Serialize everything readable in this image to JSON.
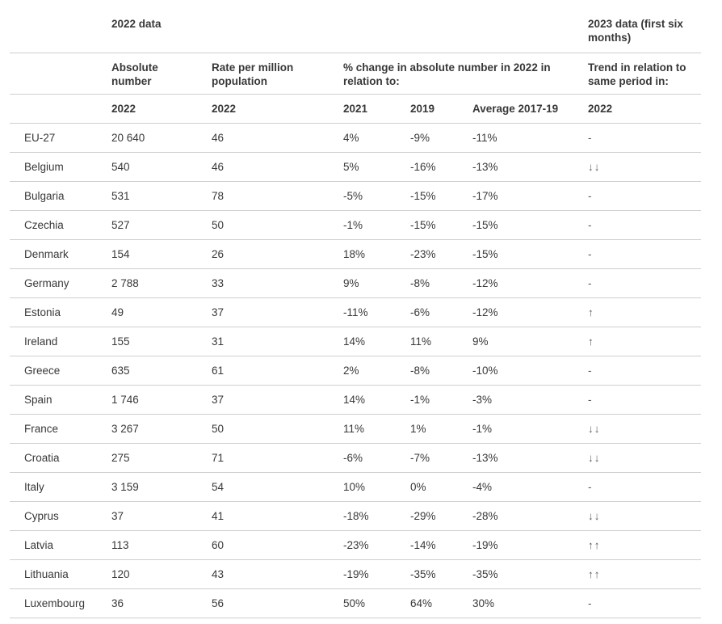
{
  "chart_data": {
    "type": "table",
    "header_groups": {
      "g2022": "2022 data",
      "g2023": "2023 data (first six months)"
    },
    "column_headers": {
      "absolute_number": "Absolute number",
      "rate_per_million": "Rate per million population",
      "pct_change_label": "% change in absolute number in 2022 in relation to:",
      "trend_label": "Trend in relation to same period in:"
    },
    "subheaders": {
      "absolute_year": "2022",
      "rate_year": "2022",
      "vs_2021": "2021",
      "vs_2019": "2019",
      "vs_avg": "Average 2017-19",
      "trend_year": "2022"
    },
    "rows": [
      {
        "country": "EU-27",
        "absolute_number": "20 640",
        "rate_per_million": "46",
        "vs_2021": "4%",
        "vs_2019": "-9%",
        "vs_avg_2017_19": "-11%",
        "trend_2023": "-"
      },
      {
        "country": "Belgium",
        "absolute_number": "540",
        "rate_per_million": "46",
        "vs_2021": "5%",
        "vs_2019": "-16%",
        "vs_avg_2017_19": "-13%",
        "trend_2023": "↓↓"
      },
      {
        "country": "Bulgaria",
        "absolute_number": "531",
        "rate_per_million": "78",
        "vs_2021": "-5%",
        "vs_2019": "-15%",
        "vs_avg_2017_19": "-17%",
        "trend_2023": "-"
      },
      {
        "country": "Czechia",
        "absolute_number": "527",
        "rate_per_million": "50",
        "vs_2021": "-1%",
        "vs_2019": "-15%",
        "vs_avg_2017_19": "-15%",
        "trend_2023": "-"
      },
      {
        "country": "Denmark",
        "absolute_number": "154",
        "rate_per_million": "26",
        "vs_2021": "18%",
        "vs_2019": "-23%",
        "vs_avg_2017_19": "-15%",
        "trend_2023": "-"
      },
      {
        "country": "Germany",
        "absolute_number": "2 788",
        "rate_per_million": "33",
        "vs_2021": "9%",
        "vs_2019": "-8%",
        "vs_avg_2017_19": "-12%",
        "trend_2023": "-"
      },
      {
        "country": "Estonia",
        "absolute_number": "49",
        "rate_per_million": "37",
        "vs_2021": "-11%",
        "vs_2019": "-6%",
        "vs_avg_2017_19": "-12%",
        "trend_2023": "↑"
      },
      {
        "country": "Ireland",
        "absolute_number": "155",
        "rate_per_million": "31",
        "vs_2021": "14%",
        "vs_2019": "11%",
        "vs_avg_2017_19": "9%",
        "trend_2023": "↑"
      },
      {
        "country": "Greece",
        "absolute_number": "635",
        "rate_per_million": "61",
        "vs_2021": "2%",
        "vs_2019": "-8%",
        "vs_avg_2017_19": "-10%",
        "trend_2023": "-"
      },
      {
        "country": "Spain",
        "absolute_number": "1 746",
        "rate_per_million": "37",
        "vs_2021": "14%",
        "vs_2019": "-1%",
        "vs_avg_2017_19": "-3%",
        "trend_2023": "-"
      },
      {
        "country": "France",
        "absolute_number": "3 267",
        "rate_per_million": "50",
        "vs_2021": "11%",
        "vs_2019": "1%",
        "vs_avg_2017_19": "-1%",
        "trend_2023": "↓↓"
      },
      {
        "country": "Croatia",
        "absolute_number": "275",
        "rate_per_million": "71",
        "vs_2021": "-6%",
        "vs_2019": "-7%",
        "vs_avg_2017_19": "-13%",
        "trend_2023": "↓↓"
      },
      {
        "country": "Italy",
        "absolute_number": "3 159",
        "rate_per_million": "54",
        "vs_2021": "10%",
        "vs_2019": "0%",
        "vs_avg_2017_19": "-4%",
        "trend_2023": "-"
      },
      {
        "country": "Cyprus",
        "absolute_number": "37",
        "rate_per_million": "41",
        "vs_2021": "-18%",
        "vs_2019": "-29%",
        "vs_avg_2017_19": "-28%",
        "trend_2023": "↓↓"
      },
      {
        "country": "Latvia",
        "absolute_number": "113",
        "rate_per_million": "60",
        "vs_2021": "-23%",
        "vs_2019": "-14%",
        "vs_avg_2017_19": "-19%",
        "trend_2023": "↑↑"
      },
      {
        "country": "Lithuania",
        "absolute_number": "120",
        "rate_per_million": "43",
        "vs_2021": "-19%",
        "vs_2019": "-35%",
        "vs_avg_2017_19": "-35%",
        "trend_2023": "↑↑"
      },
      {
        "country": "Luxembourg",
        "absolute_number": "36",
        "rate_per_million": "56",
        "vs_2021": "50%",
        "vs_2019": "64%",
        "vs_avg_2017_19": "30%",
        "trend_2023": "-"
      }
    ]
  },
  "colors": {
    "text": "#383838",
    "border": "#cfcfcf",
    "trend_symbol": "#5a5a5a",
    "background": "#ffffff"
  }
}
